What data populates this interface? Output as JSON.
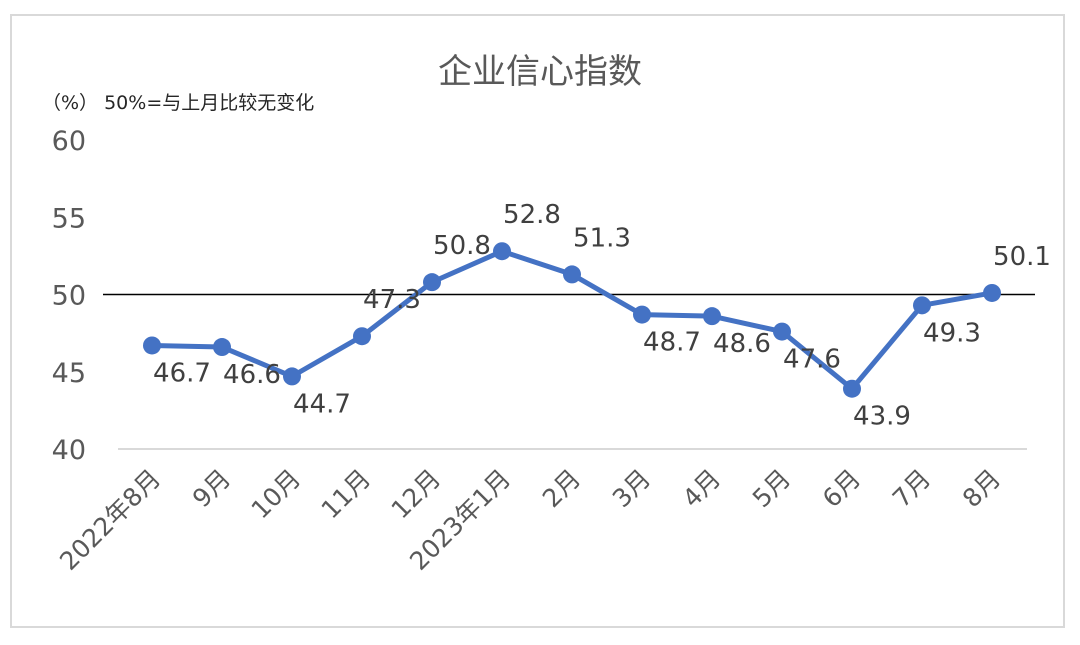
{
  "chart_data": {
    "type": "line",
    "title": "企业信心指数",
    "unit_note": "（%）  50%=与上月比较无变化",
    "categories": [
      "2022年8月",
      "9月",
      "10月",
      "11月",
      "12月",
      "2023年1月",
      "2月",
      "3月",
      "4月",
      "5月",
      "6月",
      "7月",
      "8月"
    ],
    "series": [
      {
        "values": [
          46.7,
          46.6,
          44.7,
          47.3,
          50.8,
          52.8,
          51.3,
          48.7,
          48.6,
          47.6,
          43.9,
          49.3,
          50.1
        ]
      }
    ],
    "data_labels": [
      "46.7",
      "46.6",
      "44.7",
      "47.3",
      "50.8",
      "52.8",
      "51.3",
      "48.7",
      "48.6",
      "47.6",
      "43.9",
      "49.3",
      "50.1"
    ],
    "label_position": [
      "below",
      "below",
      "below",
      "above",
      "above",
      "above",
      "above",
      "below",
      "below",
      "below",
      "below",
      "below",
      "above"
    ],
    "yticks": [
      "60",
      "55",
      "50",
      "45",
      "40"
    ],
    "ytick_values": [
      60,
      55,
      50,
      45,
      40
    ],
    "ylim": [
      40,
      60
    ],
    "reference_line": 50,
    "grid": false,
    "legend": "none",
    "colors": {
      "series": "#4472c4",
      "reference": "#000000",
      "axis": "#d9d9d9"
    }
  }
}
